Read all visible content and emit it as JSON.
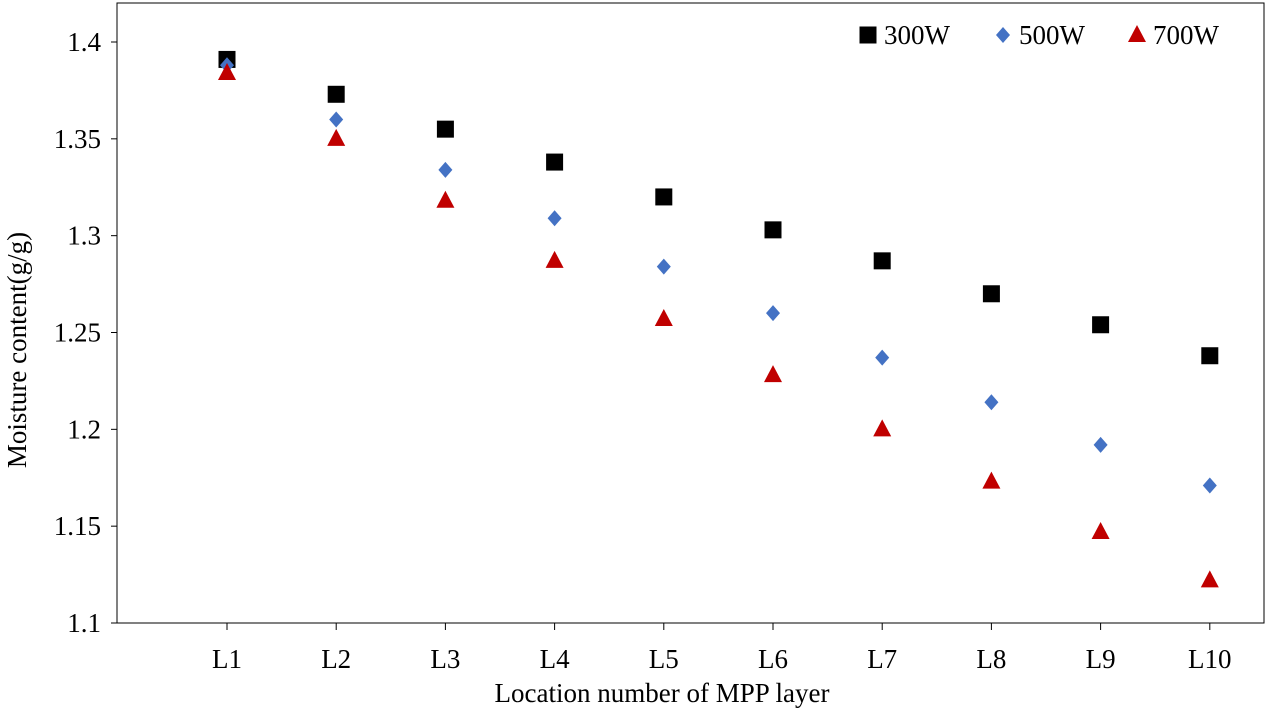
{
  "chart_data": {
    "type": "scatter",
    "title": "",
    "xlabel": "Location number of MPP layer",
    "ylabel": "Moisture content(g/g)",
    "categories": [
      "L1",
      "L2",
      "L3",
      "L4",
      "L5",
      "L6",
      "L7",
      "L8",
      "L9",
      "L10"
    ],
    "ylim": [
      1.1,
      1.4
    ],
    "yticks": [
      1.1,
      1.15,
      1.2,
      1.25,
      1.3,
      1.35,
      1.4
    ],
    "ytick_labels": [
      "1.1",
      "1.15",
      "1.2",
      "1.25",
      "1.3",
      "1.35",
      "1.4"
    ],
    "grid": false,
    "legend_position": "top-right",
    "series": [
      {
        "name": "300W",
        "marker": "square",
        "color": "#000000",
        "values": [
          1.391,
          1.373,
          1.355,
          1.338,
          1.32,
          1.303,
          1.287,
          1.27,
          1.254,
          1.238
        ]
      },
      {
        "name": "500W",
        "marker": "diamond",
        "color": "#4472C4",
        "values": [
          1.388,
          1.36,
          1.334,
          1.309,
          1.284,
          1.26,
          1.237,
          1.214,
          1.192,
          1.171
        ]
      },
      {
        "name": "700W",
        "marker": "triangle",
        "color": "#C00000",
        "values": [
          1.384,
          1.35,
          1.318,
          1.287,
          1.257,
          1.228,
          1.2,
          1.173,
          1.147,
          1.122
        ]
      }
    ]
  }
}
